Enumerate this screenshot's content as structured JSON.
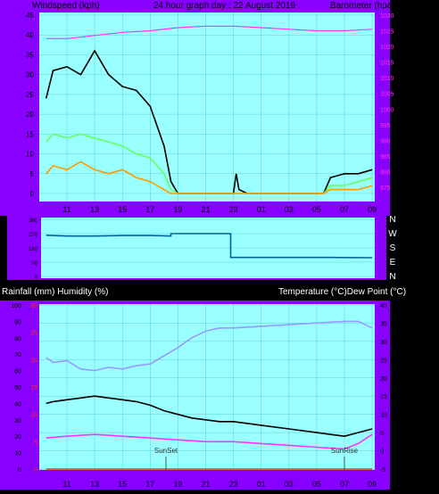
{
  "colors": {
    "frame": "#8800ff",
    "plot_bg": "#99ffff",
    "gust": "#000000",
    "avg_wind": "#66ff66",
    "wind_min": "#ff9900",
    "barometer": "#ff33ff",
    "direction": "#006699",
    "humidity": "#9999ff",
    "temperature": "#000000",
    "dew_point": "#ff33ff",
    "red_axis": "#ff3300",
    "text_light": "#ffffff"
  },
  "header": {
    "left_label": "Windspeed (kph)",
    "title": "24 hour graph day : 22 August 2019",
    "right_label": "Barometer (hpa)"
  },
  "lower_header": {
    "left_label": "Rainfall (mm)  Humidity (%)",
    "right_label": "Temperature (°C)Dew Point (°C)"
  },
  "time_ticks": [
    "11",
    "13",
    "15",
    "17",
    "19",
    "21",
    "23",
    "01",
    "03",
    "05",
    "07",
    "09"
  ],
  "direction_labels": [
    "N",
    "W",
    "S",
    "E",
    "N"
  ],
  "sun_markers": {
    "sunset": "SunSet",
    "sunrise": "SunRise"
  },
  "chart_data": [
    {
      "type": "line",
      "name": "wind_and_barometer",
      "x_ticks": [
        "11",
        "13",
        "15",
        "17",
        "19",
        "21",
        "23",
        "01",
        "03",
        "05",
        "07",
        "09"
      ],
      "y_left": {
        "label": "Windspeed (kph)",
        "range": [
          0,
          45
        ],
        "ticks": [
          0,
          5,
          10,
          15,
          20,
          25,
          30,
          35,
          40,
          45
        ]
      },
      "y_right": {
        "label": "Barometer (hpa)",
        "range": [
          973,
          1030
        ],
        "ticks": [
          975,
          980,
          985,
          990,
          995,
          1000,
          1005,
          1010,
          1015,
          1020,
          1025,
          1030
        ]
      },
      "gust": [
        [
          9.5,
          24
        ],
        [
          10,
          31
        ],
        [
          11,
          32
        ],
        [
          12,
          30
        ],
        [
          13,
          36
        ],
        [
          14,
          30
        ],
        [
          15,
          27
        ],
        [
          16,
          26
        ],
        [
          17,
          22
        ],
        [
          18,
          12
        ],
        [
          18.5,
          3
        ],
        [
          19,
          0
        ],
        [
          23,
          0
        ],
        [
          23.2,
          5
        ],
        [
          23.4,
          1
        ],
        [
          24,
          0
        ],
        [
          29.5,
          0
        ],
        [
          30,
          4
        ],
        [
          31,
          5
        ],
        [
          32,
          5
        ],
        [
          33,
          6
        ]
      ],
      "avg_wind": [
        [
          9.5,
          13
        ],
        [
          10,
          15
        ],
        [
          11,
          14
        ],
        [
          12,
          15
        ],
        [
          13,
          14
        ],
        [
          14,
          13
        ],
        [
          15,
          12
        ],
        [
          16,
          10
        ],
        [
          17,
          9
        ],
        [
          18,
          5
        ],
        [
          18.5,
          1
        ],
        [
          19,
          0
        ],
        [
          29.5,
          0
        ],
        [
          30,
          2
        ],
        [
          31,
          2
        ],
        [
          32,
          3
        ],
        [
          33,
          4
        ]
      ],
      "wind_min": [
        [
          9.5,
          5
        ],
        [
          10,
          7
        ],
        [
          11,
          6
        ],
        [
          12,
          8
        ],
        [
          13,
          6
        ],
        [
          14,
          5
        ],
        [
          15,
          6
        ],
        [
          16,
          4
        ],
        [
          17,
          3
        ],
        [
          18,
          1
        ],
        [
          18.5,
          0
        ],
        [
          29.5,
          0
        ],
        [
          30,
          1
        ],
        [
          31,
          1
        ],
        [
          32,
          1
        ],
        [
          33,
          2
        ]
      ],
      "barometer": [
        [
          9.5,
          1022.5
        ],
        [
          11,
          1022.5
        ],
        [
          13,
          1023.5
        ],
        [
          15,
          1024.5
        ],
        [
          17,
          1025
        ],
        [
          19,
          1026
        ],
        [
          21,
          1026.5
        ],
        [
          23,
          1026.5
        ],
        [
          25,
          1026
        ],
        [
          27,
          1025.5
        ],
        [
          29,
          1025
        ],
        [
          31,
          1025
        ],
        [
          33,
          1025.5
        ]
      ]
    },
    {
      "type": "line",
      "name": "wind_direction",
      "y_range": [
        0,
        360
      ],
      "y_ticks": [
        0,
        90,
        180,
        270,
        360
      ],
      "series": [
        {
          "name": "direction",
          "points": [
            [
              9.5,
              260
            ],
            [
              11,
              255
            ],
            [
              13,
              255
            ],
            [
              15,
              258
            ],
            [
              17,
              258
            ],
            [
              18.5,
              255
            ],
            [
              18.5,
              270
            ],
            [
              22.8,
              270
            ],
            [
              22.8,
              120
            ],
            [
              30,
              120
            ],
            [
              33,
              118
            ]
          ]
        }
      ]
    },
    {
      "type": "line",
      "name": "temperature_humidity",
      "x_ticks": [
        "11",
        "13",
        "15",
        "17",
        "19",
        "21",
        "23",
        "01",
        "03",
        "05",
        "07",
        "09"
      ],
      "y_left_black": {
        "label": "Humidity (%)",
        "range": [
          0,
          100
        ],
        "ticks": [
          0,
          10,
          20,
          30,
          40,
          50,
          60,
          70,
          80,
          90,
          100
        ]
      },
      "y_left_red": {
        "label": "Rainfall (mm)",
        "range": [
          0,
          30
        ],
        "ticks": [
          0,
          5,
          10,
          15,
          20,
          25,
          30
        ]
      },
      "y_right": {
        "label": "Temperature (°C)",
        "range": [
          -5,
          40
        ],
        "ticks": [
          -5,
          0,
          5,
          10,
          15,
          20,
          25,
          30,
          35,
          40
        ]
      },
      "humidity": [
        [
          9.5,
          68
        ],
        [
          10,
          65
        ],
        [
          11,
          66
        ],
        [
          12,
          61
        ],
        [
          13,
          60
        ],
        [
          14,
          62
        ],
        [
          15,
          61
        ],
        [
          16,
          63
        ],
        [
          17,
          64
        ],
        [
          18,
          69
        ],
        [
          19,
          74
        ],
        [
          20,
          80
        ],
        [
          21,
          84
        ],
        [
          22,
          86
        ],
        [
          23,
          86
        ],
        [
          25,
          87
        ],
        [
          27,
          88
        ],
        [
          29,
          89
        ],
        [
          31,
          90
        ],
        [
          32,
          90
        ],
        [
          33,
          86
        ]
      ],
      "temperature": [
        [
          9.5,
          13
        ],
        [
          10,
          13.5
        ],
        [
          11,
          14
        ],
        [
          12,
          14.5
        ],
        [
          13,
          15
        ],
        [
          14,
          14.5
        ],
        [
          15,
          14
        ],
        [
          16,
          13.5
        ],
        [
          17,
          12.5
        ],
        [
          18,
          11
        ],
        [
          19,
          10
        ],
        [
          20,
          9
        ],
        [
          21,
          8.5
        ],
        [
          22,
          8
        ],
        [
          23,
          8
        ],
        [
          25,
          7
        ],
        [
          27,
          6
        ],
        [
          29,
          5
        ],
        [
          30,
          4.5
        ],
        [
          31,
          4
        ],
        [
          32,
          5
        ],
        [
          33,
          6
        ]
      ],
      "dew_point": [
        [
          9.5,
          3.5
        ],
        [
          11,
          4
        ],
        [
          13,
          4.5
        ],
        [
          15,
          4
        ],
        [
          17,
          3.5
        ],
        [
          19,
          3
        ],
        [
          21,
          2.5
        ],
        [
          23,
          2.5
        ],
        [
          25,
          2
        ],
        [
          27,
          1.5
        ],
        [
          29,
          1
        ],
        [
          31,
          0.5
        ],
        [
          32,
          2
        ],
        [
          33,
          4.5
        ]
      ],
      "rainfall": [
        [
          9.5,
          0
        ],
        [
          33,
          0
        ]
      ]
    }
  ]
}
